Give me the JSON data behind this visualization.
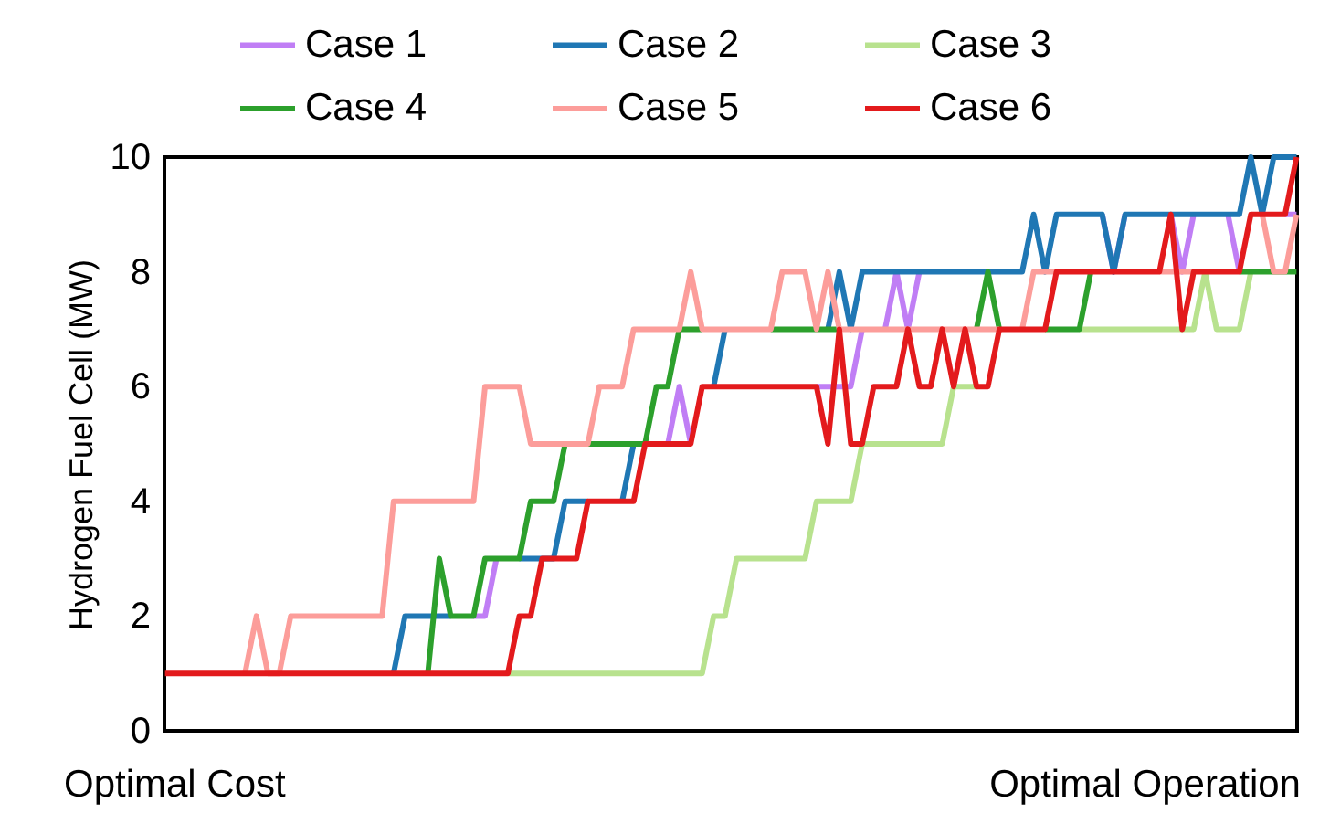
{
  "chart_data": {
    "type": "line",
    "ylabel": "Hydrogen Fuel Cell (MW)",
    "ylim": [
      0,
      10
    ],
    "yticks": [
      0,
      2,
      4,
      6,
      8,
      10
    ],
    "grid": false,
    "legend": "top",
    "tick_labels": "y",
    "annotations": [
      "Optimal Cost",
      "Optimal Operation"
    ],
    "categories": [
      null,
      null,
      null,
      null,
      null,
      null,
      null,
      null,
      null,
      null,
      null,
      null,
      null,
      null,
      null,
      null,
      null,
      null,
      null,
      null,
      null,
      null,
      null,
      null,
      null,
      null,
      null,
      null,
      null,
      null,
      null,
      null,
      null,
      null,
      null,
      null,
      null,
      null,
      null,
      null,
      null,
      null,
      null,
      null,
      null,
      null,
      null,
      null,
      null,
      null,
      null,
      null,
      null,
      null,
      null,
      null,
      null,
      null,
      null,
      null,
      null,
      null,
      null,
      null,
      null,
      null,
      null,
      null,
      null,
      null,
      null,
      null,
      null,
      null,
      null,
      null,
      null,
      null,
      null,
      null,
      null,
      null,
      null,
      null,
      null,
      null,
      null,
      null,
      null,
      null,
      null,
      null,
      null,
      null,
      null,
      null,
      null,
      null,
      null,
      null
    ],
    "series": [
      {
        "name": "Case 1",
        "color": "#c07ef5",
        "values": [
          null,
          null,
          null,
          null,
          null,
          null,
          null,
          null,
          null,
          null,
          null,
          null,
          null,
          null,
          null,
          null,
          null,
          null,
          null,
          null,
          null,
          null,
          null,
          null,
          null,
          null,
          null,
          2,
          2,
          3,
          null,
          null,
          null,
          null,
          null,
          null,
          null,
          null,
          null,
          null,
          null,
          null,
          null,
          null,
          5,
          6,
          5,
          null,
          null,
          null,
          null,
          null,
          null,
          null,
          null,
          null,
          null,
          6,
          6,
          6,
          6,
          7,
          null,
          7,
          8,
          7,
          8,
          null,
          null,
          null,
          null,
          null,
          null,
          null,
          null,
          null,
          null,
          null,
          null,
          null,
          null,
          null,
          9,
          8,
          9,
          null,
          null,
          null,
          9,
          8,
          9,
          null,
          null,
          9,
          8,
          null,
          null,
          null,
          9,
          9
        ]
      },
      {
        "name": "Case 2",
        "color": "#1f77b4",
        "values": [
          null,
          null,
          null,
          null,
          null,
          null,
          null,
          null,
          null,
          null,
          null,
          null,
          null,
          null,
          null,
          null,
          null,
          null,
          null,
          null,
          1,
          2,
          2,
          2,
          2,
          2,
          null,
          null,
          null,
          null,
          null,
          3,
          3,
          3,
          3,
          4,
          4,
          4,
          null,
          null,
          4,
          5,
          null,
          null,
          null,
          null,
          null,
          null,
          6,
          7,
          null,
          null,
          null,
          null,
          null,
          null,
          null,
          null,
          7,
          8,
          7,
          8,
          8,
          8,
          8,
          8,
          8,
          8,
          8,
          8,
          8,
          8,
          8,
          8,
          8,
          8,
          9,
          8,
          9,
          9,
          9,
          9,
          9,
          8,
          9,
          9,
          9,
          9,
          9,
          9,
          9,
          9,
          9,
          9,
          9,
          10,
          9,
          10,
          10,
          10
        ]
      },
      {
        "name": "Case 3",
        "color": "#b8e28e",
        "values": [
          null,
          null,
          null,
          null,
          null,
          null,
          null,
          null,
          null,
          null,
          null,
          null,
          null,
          null,
          null,
          null,
          null,
          null,
          null,
          null,
          null,
          null,
          null,
          null,
          null,
          null,
          null,
          null,
          null,
          null,
          1,
          1,
          1,
          1,
          1,
          1,
          1,
          1,
          1,
          1,
          1,
          1,
          1,
          1,
          1,
          1,
          1,
          1,
          2,
          2,
          3,
          3,
          3,
          3,
          3,
          3,
          3,
          4,
          4,
          4,
          4,
          5,
          5,
          5,
          5,
          5,
          5,
          5,
          5,
          6,
          6,
          6,
          null,
          null,
          null,
          null,
          null,
          null,
          null,
          null,
          7,
          7,
          7,
          7,
          7,
          7,
          7,
          7,
          7,
          7,
          7,
          8,
          7,
          7,
          7,
          8,
          null,
          null,
          null,
          null
        ]
      },
      {
        "name": "Case 4",
        "color": "#2ca02c",
        "values": [
          null,
          null,
          null,
          null,
          null,
          null,
          null,
          null,
          null,
          null,
          null,
          null,
          null,
          null,
          null,
          null,
          null,
          null,
          null,
          null,
          null,
          null,
          null,
          1,
          3,
          2,
          2,
          2,
          3,
          3,
          3,
          3,
          4,
          4,
          4,
          5,
          null,
          5,
          5,
          5,
          5,
          5,
          5,
          6,
          6,
          7,
          7,
          7,
          null,
          null,
          null,
          null,
          null,
          7,
          7,
          7,
          7,
          7,
          7,
          7,
          null,
          null,
          null,
          null,
          null,
          null,
          null,
          null,
          null,
          null,
          null,
          7,
          8,
          7,
          null,
          null,
          null,
          7,
          7,
          7,
          7,
          8,
          null,
          null,
          null,
          null,
          null,
          null,
          null,
          null,
          null,
          null,
          null,
          null,
          8,
          8,
          8,
          8,
          8,
          8
        ]
      },
      {
        "name": "Case 5",
        "color": "#fc9d9a",
        "values": [
          null,
          null,
          null,
          null,
          null,
          null,
          null,
          1,
          2,
          1,
          1,
          2,
          2,
          2,
          2,
          2,
          2,
          2,
          2,
          2,
          4,
          4,
          4,
          4,
          4,
          4,
          4,
          4,
          6,
          6,
          6,
          6,
          5,
          5,
          5,
          5,
          5,
          5,
          6,
          6,
          6,
          7,
          7,
          7,
          7,
          7,
          8,
          7,
          7,
          7,
          7,
          7,
          7,
          7,
          8,
          8,
          8,
          7,
          8,
          7,
          7,
          7,
          7,
          7,
          7,
          7,
          7,
          7,
          7,
          7,
          7,
          7,
          7,
          7,
          null,
          7,
          8,
          8,
          8,
          null,
          null,
          null,
          null,
          null,
          null,
          null,
          null,
          8,
          8,
          8,
          8,
          null,
          null,
          null,
          null,
          null,
          9,
          8,
          8,
          9
        ]
      },
      {
        "name": "Case 6",
        "color": "#e31a1c",
        "values": [
          1,
          1,
          1,
          1,
          1,
          1,
          1,
          1,
          1,
          1,
          1,
          1,
          1,
          1,
          1,
          1,
          1,
          1,
          1,
          1,
          1,
          1,
          1,
          1,
          1,
          1,
          1,
          1,
          1,
          1,
          1,
          2,
          2,
          3,
          3,
          3,
          3,
          4,
          4,
          4,
          4,
          4,
          5,
          5,
          5,
          5,
          5,
          6,
          6,
          6,
          6,
          6,
          6,
          6,
          6,
          6,
          6,
          6,
          5,
          7,
          5,
          5,
          6,
          6,
          6,
          7,
          6,
          6,
          7,
          6,
          7,
          6,
          6,
          7,
          7,
          7,
          7,
          7,
          8,
          8,
          8,
          8,
          8,
          8,
          8,
          8,
          8,
          8,
          9,
          7,
          8,
          8,
          8,
          8,
          8,
          9,
          9,
          9,
          9,
          10
        ]
      }
    ]
  }
}
